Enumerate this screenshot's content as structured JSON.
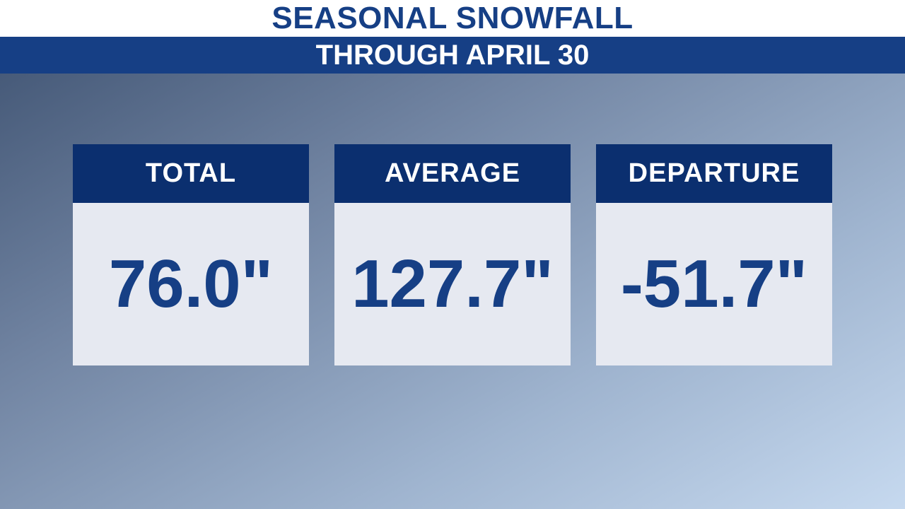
{
  "header": {
    "title": "SEASONAL SNOWFALL",
    "subtitle": "THROUGH APRIL 30"
  },
  "cards": [
    {
      "label": "TOTAL",
      "value": "76.0\""
    },
    {
      "label": "AVERAGE",
      "value": "127.7\""
    },
    {
      "label": "DEPARTURE",
      "value": "-51.7\""
    }
  ]
}
